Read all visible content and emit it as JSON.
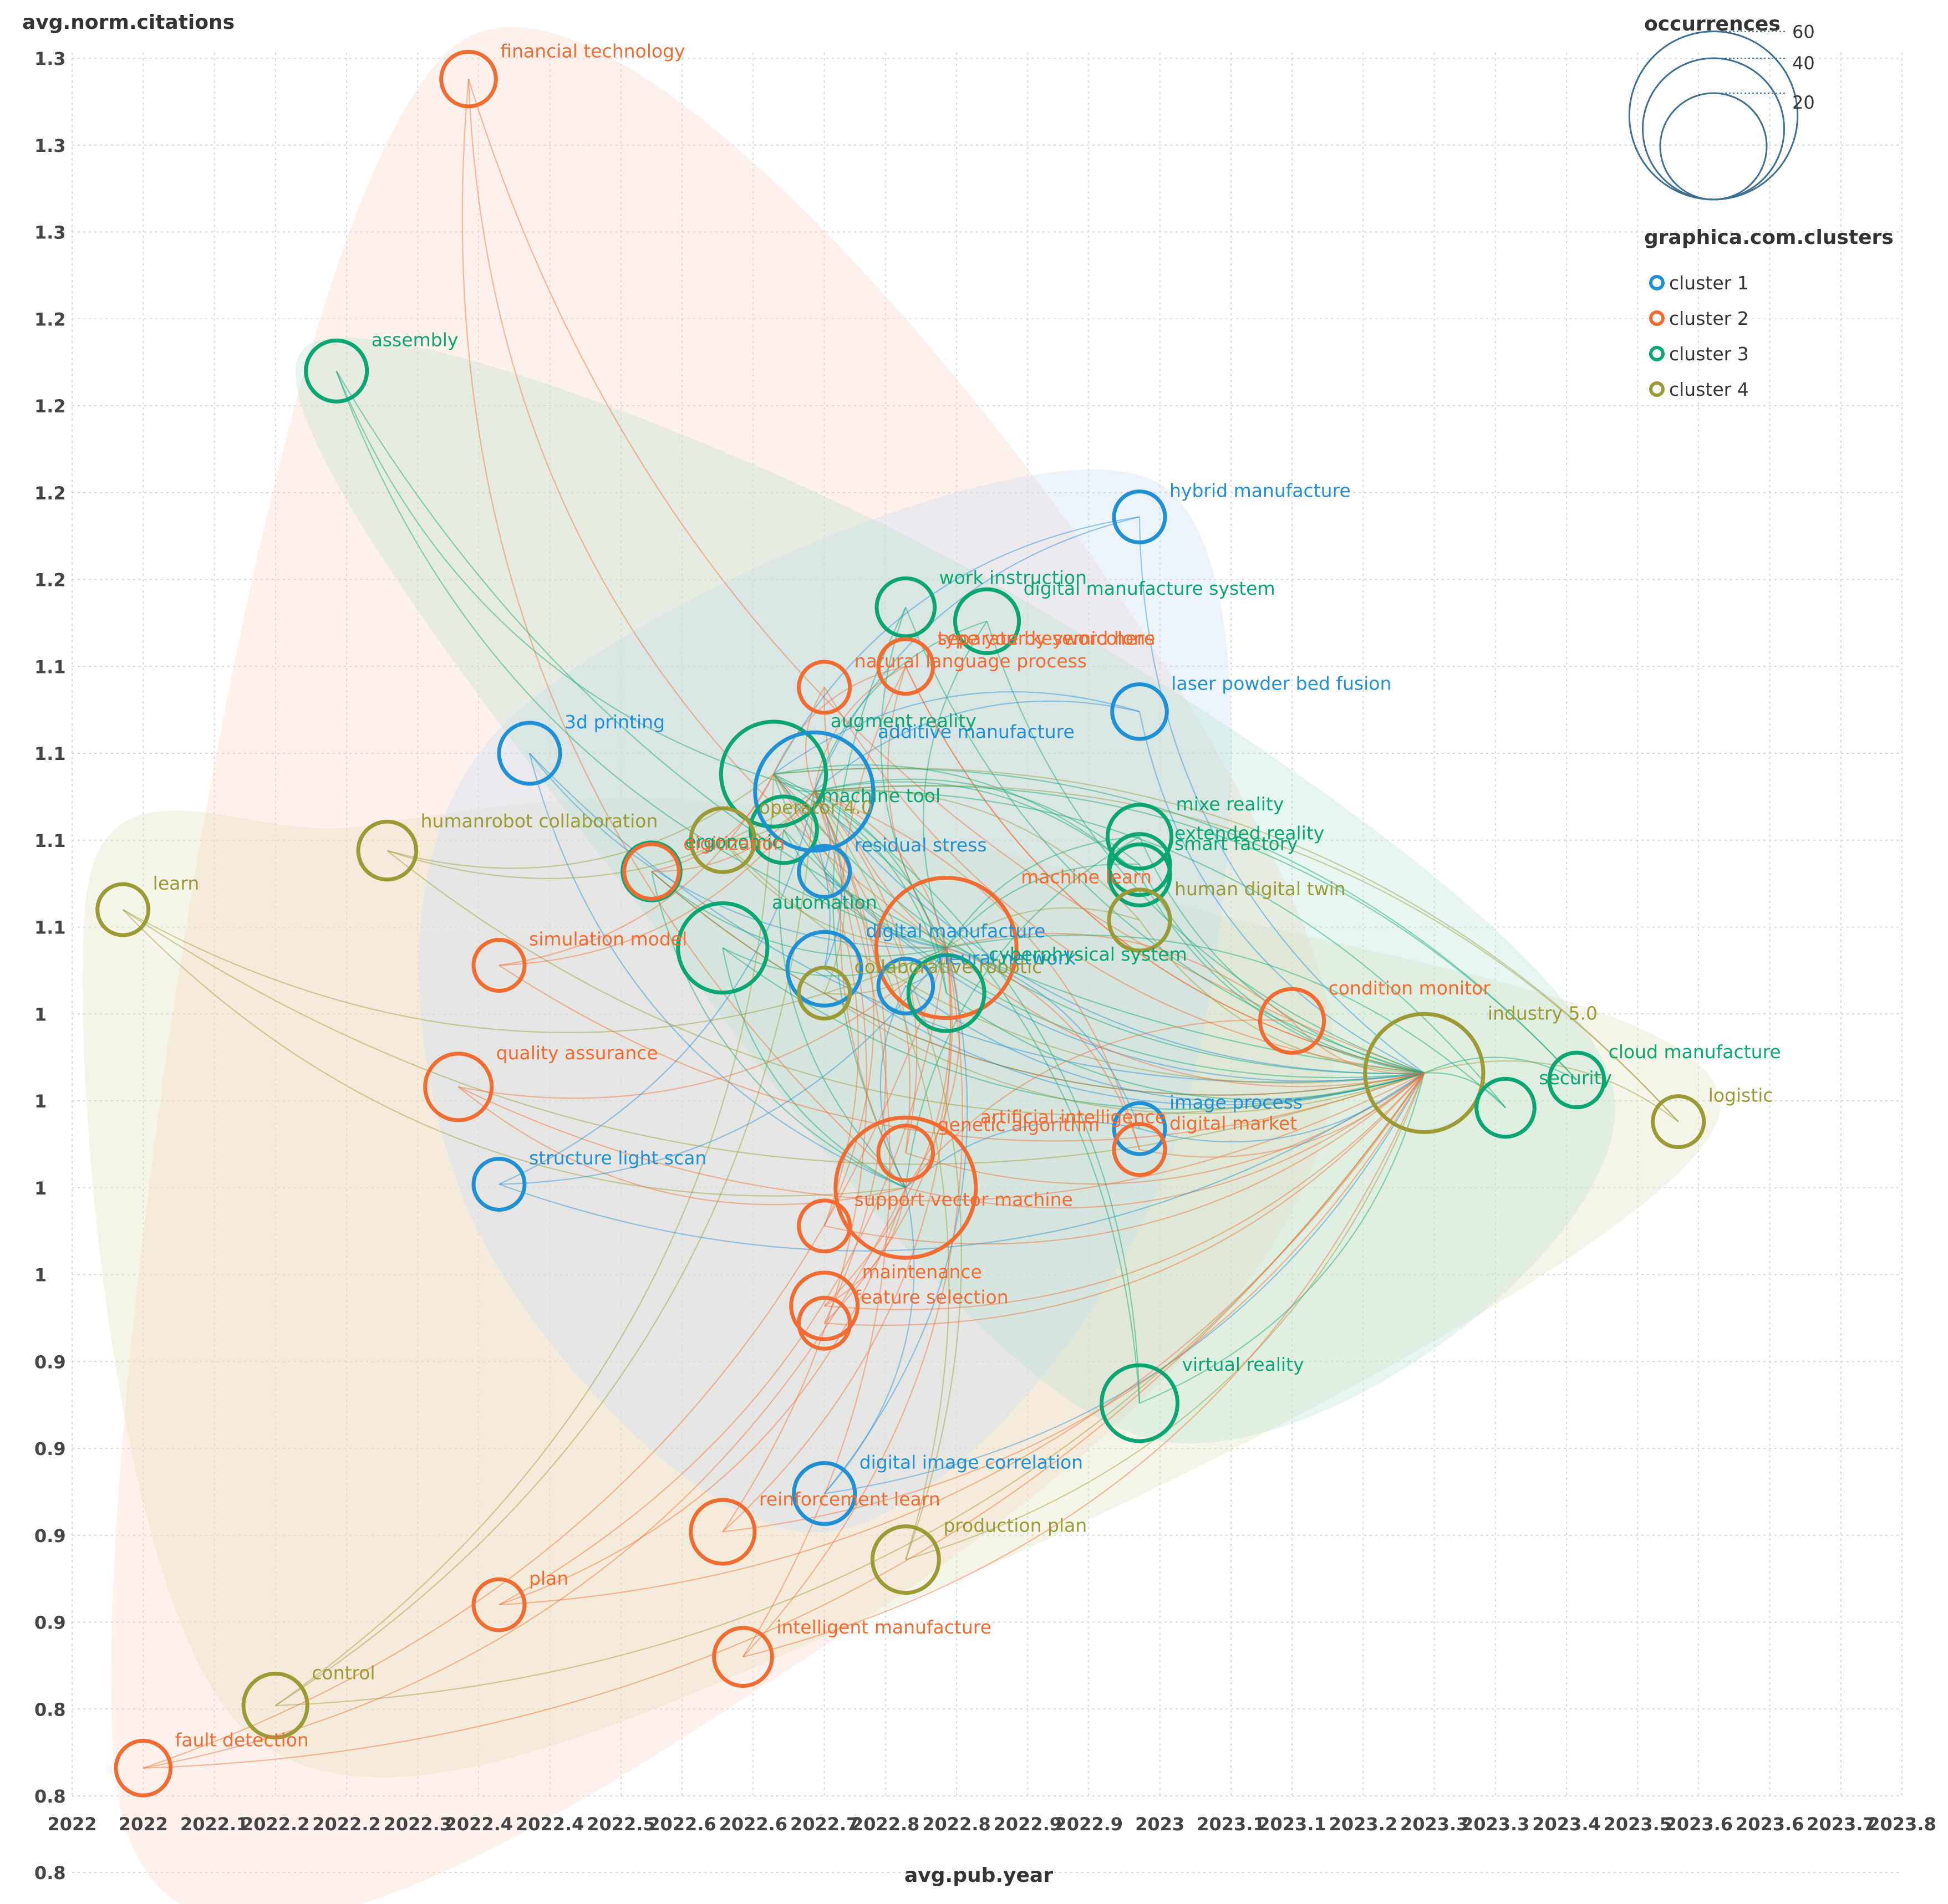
{
  "chart_data": {
    "type": "scatter",
    "xlabel": "avg.pub.year",
    "ylabel": "avg.norm.citations",
    "xlim": [
      2022.0,
      2023.8
    ],
    "ylim": [
      0.8,
      1.3
    ],
    "grid": true,
    "x_ticks": [
      {
        "value": 2022.0,
        "label": "2022"
      },
      {
        "value": 2022.07,
        "label": "2022"
      },
      {
        "value": 2022.14,
        "label": "2022.1"
      },
      {
        "value": 2022.2,
        "label": "2022.2"
      },
      {
        "value": 2022.27,
        "label": "2022.2"
      },
      {
        "value": 2022.34,
        "label": "2022.3"
      },
      {
        "value": 2022.4,
        "label": "2022.4"
      },
      {
        "value": 2022.47,
        "label": "2022.4"
      },
      {
        "value": 2022.54,
        "label": "2022.5"
      },
      {
        "value": 2022.6,
        "label": "2022.6"
      },
      {
        "value": 2022.67,
        "label": "2022.6"
      },
      {
        "value": 2022.74,
        "label": "2022.7"
      },
      {
        "value": 2022.8,
        "label": "2022.8"
      },
      {
        "value": 2022.87,
        "label": "2022.8"
      },
      {
        "value": 2022.94,
        "label": "2022.9"
      },
      {
        "value": 2023.0,
        "label": "2022.9"
      },
      {
        "value": 2023.07,
        "label": "2023"
      },
      {
        "value": 2023.14,
        "label": "2023.1"
      },
      {
        "value": 2023.2,
        "label": "2023.1"
      },
      {
        "value": 2023.27,
        "label": "2023.2"
      },
      {
        "value": 2023.34,
        "label": "2023.3"
      },
      {
        "value": 2023.4,
        "label": "2023.3"
      },
      {
        "value": 2023.47,
        "label": "2023.4"
      },
      {
        "value": 2023.54,
        "label": "2023.5"
      },
      {
        "value": 2023.6,
        "label": "2023.6"
      },
      {
        "value": 2023.67,
        "label": "2023.6"
      },
      {
        "value": 2023.74,
        "label": "2023.7"
      },
      {
        "value": 2023.8,
        "label": "2023.8"
      }
    ],
    "y_ticks": [
      {
        "value": 1.3,
        "label": "1.3"
      },
      {
        "value": 1.275,
        "label": "1.3"
      },
      {
        "value": 1.25,
        "label": "1.3"
      },
      {
        "value": 1.225,
        "label": "1.2"
      },
      {
        "value": 1.2,
        "label": "1.2"
      },
      {
        "value": 1.175,
        "label": "1.2"
      },
      {
        "value": 1.15,
        "label": "1.2"
      },
      {
        "value": 1.125,
        "label": "1.1"
      },
      {
        "value": 1.1,
        "label": "1.1"
      },
      {
        "value": 1.075,
        "label": "1.1"
      },
      {
        "value": 1.05,
        "label": "1.1"
      },
      {
        "value": 1.025,
        "label": "1"
      },
      {
        "value": 1.0,
        "label": "1"
      },
      {
        "value": 0.975,
        "label": "1"
      },
      {
        "value": 0.95,
        "label": "1"
      },
      {
        "value": 0.925,
        "label": "0.9"
      },
      {
        "value": 0.9,
        "label": "0.9"
      },
      {
        "value": 0.875,
        "label": "0.9"
      },
      {
        "value": 0.85,
        "label": "0.9"
      },
      {
        "value": 0.825,
        "label": "0.8"
      },
      {
        "value": 0.8,
        "label": "0.8"
      },
      {
        "value": 0.778,
        "label": "0.8"
      }
    ],
    "clusters": [
      {
        "name": "cluster 1",
        "color": "#1f8fd6"
      },
      {
        "name": "cluster 2",
        "color": "#f26b30"
      },
      {
        "name": "cluster 3",
        "color": "#09a672"
      },
      {
        "name": "cluster 4",
        "color": "#9c9a35"
      }
    ],
    "nodes": [
      {
        "label": "financial technology",
        "x": 2022.39,
        "y": 1.294,
        "size": 5,
        "cluster": 2
      },
      {
        "label": "assembly",
        "x": 2022.26,
        "y": 1.21,
        "size": 7,
        "cluster": 3
      },
      {
        "label": "hybrid manufacture",
        "x": 2023.05,
        "y": 1.168,
        "size": 4,
        "cluster": 1
      },
      {
        "label": "work instruction",
        "x": 2022.82,
        "y": 1.142,
        "size": 6,
        "cluster": 3
      },
      {
        "label": "digital manufacture system",
        "x": 2022.9,
        "y": 1.138,
        "size": 8,
        "cluster": 3
      },
      {
        "label": "type your keyword here",
        "x": 2022.82,
        "y": 1.125,
        "size": 5,
        "cluster": 2
      },
      {
        "label": "separate by semicolons",
        "x": 2022.82,
        "y": 1.125,
        "size": 5,
        "cluster": 2
      },
      {
        "label": "natural language process",
        "x": 2022.74,
        "y": 1.119,
        "size": 4,
        "cluster": 2
      },
      {
        "label": "laser powder bed fusion",
        "x": 2023.05,
        "y": 1.112,
        "size": 5,
        "cluster": 1
      },
      {
        "label": "3d printing",
        "x": 2022.45,
        "y": 1.1,
        "size": 7,
        "cluster": 1
      },
      {
        "label": "augment reality",
        "x": 2022.69,
        "y": 1.094,
        "size": 30,
        "cluster": 3
      },
      {
        "label": "additive manufacture",
        "x": 2022.73,
        "y": 1.089,
        "size": 40,
        "cluster": 1
      },
      {
        "label": "machine tool",
        "x": 2022.7,
        "y": 1.078,
        "size": 9,
        "cluster": 3
      },
      {
        "label": "operator 4.0",
        "x": 2022.64,
        "y": 1.075,
        "size": 8,
        "cluster": 4
      },
      {
        "label": "humanrobot collaboration",
        "x": 2022.31,
        "y": 1.072,
        "size": 6,
        "cluster": 4
      },
      {
        "label": "mixe reality",
        "x": 2023.05,
        "y": 1.076,
        "size": 8,
        "cluster": 3
      },
      {
        "label": "extended reality",
        "x": 2023.05,
        "y": 1.068,
        "size": 7,
        "cluster": 3
      },
      {
        "label": "smart factory",
        "x": 2023.05,
        "y": 1.065,
        "size": 7,
        "cluster": 3
      },
      {
        "label": "ergonomic",
        "x": 2022.57,
        "y": 1.066,
        "size": 6,
        "cluster": 3
      },
      {
        "label": "residual stress",
        "x": 2022.74,
        "y": 1.066,
        "size": 4,
        "cluster": 1
      },
      {
        "label": "digitization",
        "x": 2022.57,
        "y": 1.066,
        "size": 5,
        "cluster": 2
      },
      {
        "label": "learn",
        "x": 2022.05,
        "y": 1.055,
        "size": 4,
        "cluster": 4
      },
      {
        "label": "human digital twin",
        "x": 2023.05,
        "y": 1.052,
        "size": 7,
        "cluster": 4
      },
      {
        "label": "digital manufacture",
        "x": 2022.74,
        "y": 1.038,
        "size": 12,
        "cluster": 1
      },
      {
        "label": "automation",
        "x": 2022.64,
        "y": 1.044,
        "size": 20,
        "cluster": 3
      },
      {
        "label": "machine learn",
        "x": 2022.86,
        "y": 1.044,
        "size": 60,
        "cluster": 2
      },
      {
        "label": "simulation model",
        "x": 2022.42,
        "y": 1.039,
        "size": 4,
        "cluster": 2
      },
      {
        "label": "neural network",
        "x": 2022.82,
        "y": 1.033,
        "size": 5,
        "cluster": 1
      },
      {
        "label": "collaborative robotic",
        "x": 2022.74,
        "y": 1.031,
        "size": 4,
        "cluster": 4
      },
      {
        "label": "cyberphysical system",
        "x": 2022.86,
        "y": 1.031,
        "size": 13,
        "cluster": 3
      },
      {
        "label": "condition monitor",
        "x": 2023.2,
        "y": 1.023,
        "size": 8,
        "cluster": 2
      },
      {
        "label": "industry 5.0",
        "x": 2023.33,
        "y": 1.008,
        "size": 40,
        "cluster": 4
      },
      {
        "label": "cloud manufacture",
        "x": 2023.48,
        "y": 1.006,
        "size": 5,
        "cluster": 3
      },
      {
        "label": "quality assurance",
        "x": 2022.38,
        "y": 1.004,
        "size": 9,
        "cluster": 2
      },
      {
        "label": "security",
        "x": 2023.41,
        "y": 0.998,
        "size": 6,
        "cluster": 3
      },
      {
        "label": "logistic",
        "x": 2023.58,
        "y": 0.994,
        "size": 4,
        "cluster": 4
      },
      {
        "label": "image process",
        "x": 2023.05,
        "y": 0.992,
        "size": 4,
        "cluster": 1
      },
      {
        "label": "digital market",
        "x": 2023.05,
        "y": 0.986,
        "size": 4,
        "cluster": 2
      },
      {
        "label": "genetic algorithm",
        "x": 2022.82,
        "y": 0.985,
        "size": 5,
        "cluster": 2
      },
      {
        "label": "artificial intelligence",
        "x": 2022.82,
        "y": 0.975,
        "size": 60,
        "cluster": 2
      },
      {
        "label": "structure light scan",
        "x": 2022.42,
        "y": 0.976,
        "size": 4,
        "cluster": 1
      },
      {
        "label": "support vector machine",
        "x": 2022.74,
        "y": 0.964,
        "size": 4,
        "cluster": 2
      },
      {
        "label": "maintenance",
        "x": 2022.74,
        "y": 0.941,
        "size": 9,
        "cluster": 2
      },
      {
        "label": "feature selection",
        "x": 2022.74,
        "y": 0.936,
        "size": 4,
        "cluster": 2
      },
      {
        "label": "virtual reality",
        "x": 2023.05,
        "y": 0.913,
        "size": 13,
        "cluster": 3
      },
      {
        "label": "digital image correlation",
        "x": 2022.74,
        "y": 0.887,
        "size": 7,
        "cluster": 1
      },
      {
        "label": "reinforcement learn",
        "x": 2022.64,
        "y": 0.876,
        "size": 8,
        "cluster": 2
      },
      {
        "label": "production plan",
        "x": 2022.82,
        "y": 0.868,
        "size": 9,
        "cluster": 4
      },
      {
        "label": "plan",
        "x": 2022.42,
        "y": 0.855,
        "size": 4,
        "cluster": 2
      },
      {
        "label": "intelligent manufacture",
        "x": 2022.66,
        "y": 0.84,
        "size": 6,
        "cluster": 2
      },
      {
        "label": "control",
        "x": 2022.2,
        "y": 0.826,
        "size": 8,
        "cluster": 4
      },
      {
        "label": "fault detection",
        "x": 2022.07,
        "y": 0.808,
        "size": 5,
        "cluster": 2
      }
    ]
  },
  "legend": {
    "size_title": "occurrences",
    "size_values": [
      "60",
      "40",
      "20"
    ],
    "cluster_title": "graphica.com.clusters",
    "cluster_labels": [
      "cluster 1",
      "cluster 2",
      "cluster 3",
      "cluster 4"
    ]
  }
}
